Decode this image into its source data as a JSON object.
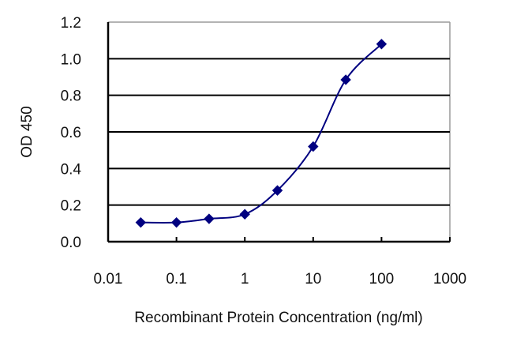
{
  "chart_data": {
    "type": "line",
    "title": "",
    "xlabel": "Recombinant Protein Concentration (ng/ml)",
    "ylabel": "OD 450",
    "x_scale": "log",
    "xlim": [
      0.01,
      1000
    ],
    "ylim": [
      0.0,
      1.2
    ],
    "x_ticks": [
      "0.01",
      "0.1",
      "1",
      "10",
      "100",
      "1000"
    ],
    "y_ticks": [
      "0.0",
      "0.2",
      "0.4",
      "0.6",
      "0.8",
      "1.0",
      "1.2"
    ],
    "grid": "horizontal",
    "legend": "none",
    "series": [
      {
        "name": "OD 450",
        "color": "#000080",
        "marker": "diamond",
        "x": [
          0.03,
          0.1,
          0.3,
          1,
          3,
          10,
          30,
          100
        ],
        "values": [
          0.105,
          0.105,
          0.125,
          0.15,
          0.28,
          0.52,
          0.885,
          1.08
        ]
      }
    ]
  },
  "colors": {
    "series": "#000080",
    "axis": "#000000",
    "grid": "#000000",
    "frame_right_top": "#9a9a9a"
  }
}
